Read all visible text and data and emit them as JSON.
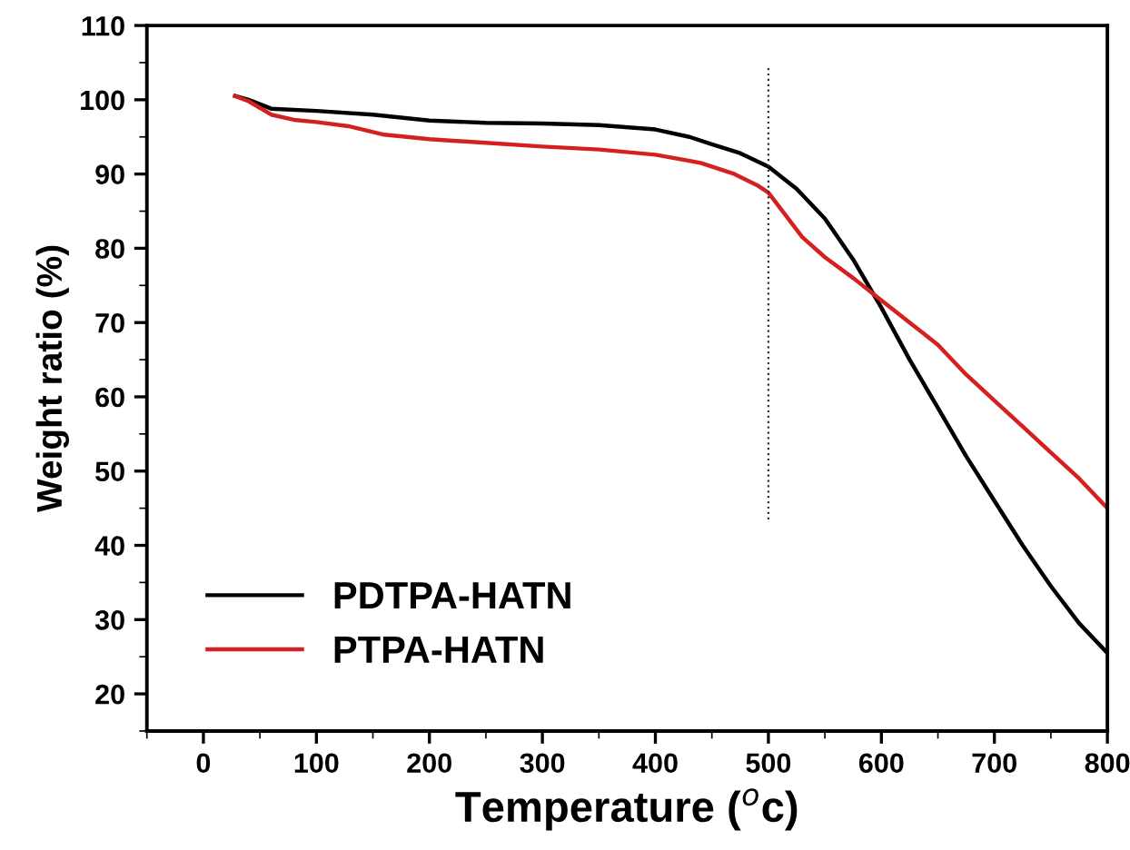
{
  "chart_data": {
    "type": "line",
    "xlabel": "Temperature ($^{o}$c)",
    "ylabel": "Weight ratio (%)",
    "xlim": [
      -50,
      800
    ],
    "xticks": [
      0,
      100,
      200,
      300,
      400,
      500,
      600,
      700,
      800
    ],
    "ylim": [
      15,
      110
    ],
    "yticks": [
      20,
      30,
      40,
      50,
      60,
      70,
      80,
      90,
      100,
      110
    ],
    "grid": false,
    "legend": "bottom left",
    "marker": "none",
    "line_style": "solid",
    "ref_lines": [
      {
        "axis": "x",
        "value": 500,
        "color": "#333333",
        "line_style": "dotted"
      }
    ],
    "series": [
      {
        "name": "PDTPA-HATN",
        "color": "#000000",
        "x": [
          28,
          40,
          60,
          100,
          150,
          200,
          250,
          300,
          350,
          400,
          430,
          450,
          475,
          500,
          525,
          550,
          575,
          600,
          625,
          650,
          675,
          700,
          725,
          750,
          775,
          800
        ],
        "values": [
          100.5,
          100,
          98.8,
          98.5,
          98,
          97.2,
          96.9,
          96.8,
          96.6,
          96,
          95,
          94,
          92.8,
          91,
          88,
          84,
          78.5,
          72,
          65,
          58.5,
          52,
          46,
          40,
          34.5,
          29.5,
          25.5
        ]
      },
      {
        "name": "PTPA-HATN",
        "color": "#d42020",
        "x": [
          28,
          40,
          60,
          80,
          100,
          130,
          160,
          200,
          250,
          300,
          350,
          400,
          440,
          470,
          490,
          500,
          515,
          530,
          550,
          575,
          600,
          625,
          650,
          675,
          700,
          725,
          750,
          775,
          800
        ],
        "values": [
          100.5,
          99.8,
          98,
          97.3,
          97,
          96.4,
          95.3,
          94.7,
          94.2,
          93.7,
          93.3,
          92.6,
          91.5,
          90,
          88.5,
          87.5,
          84.5,
          81.5,
          78.8,
          76,
          73,
          70,
          67,
          63,
          59.5,
          56,
          52.5,
          49,
          45
        ]
      }
    ]
  }
}
